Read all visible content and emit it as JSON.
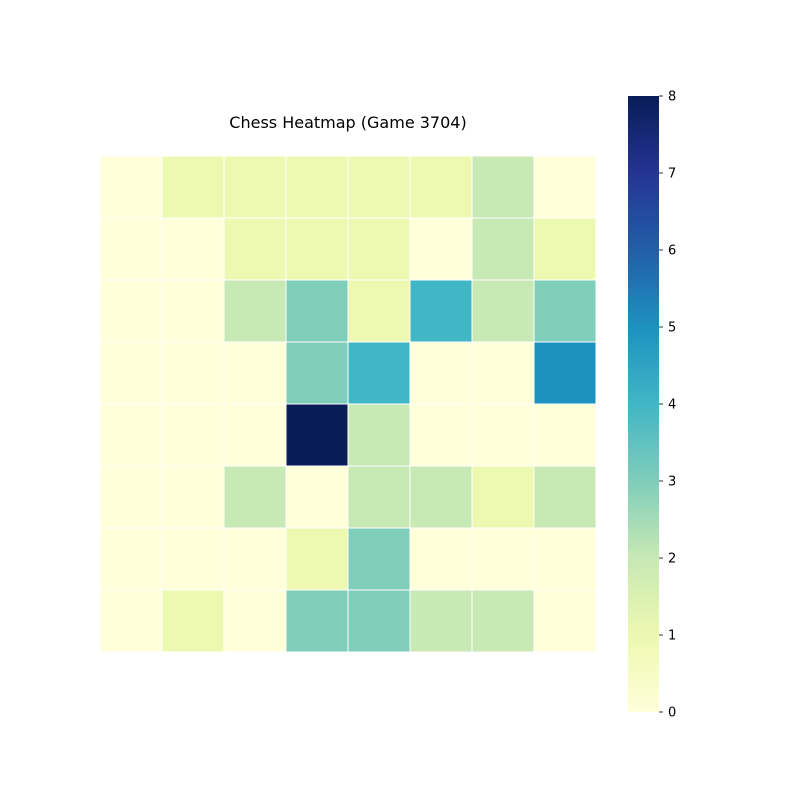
{
  "chart_data": {
    "type": "heatmap",
    "title": "Chess Heatmap (Game 3704)",
    "xlabel": "",
    "ylabel": "",
    "rows": 8,
    "cols": 8,
    "values": [
      [
        0,
        1,
        1,
        1,
        1,
        1,
        2,
        0
      ],
      [
        0,
        0,
        1,
        1,
        1,
        0,
        2,
        1
      ],
      [
        0,
        0,
        2,
        3,
        1,
        4,
        2,
        3
      ],
      [
        0,
        0,
        0,
        3,
        4,
        0,
        0,
        5
      ],
      [
        0,
        0,
        0,
        8,
        2,
        0,
        0,
        0
      ],
      [
        0,
        0,
        2,
        0,
        2,
        2,
        1,
        2
      ],
      [
        0,
        0,
        0,
        1,
        3,
        0,
        0,
        0
      ],
      [
        0,
        1,
        0,
        3,
        3,
        2,
        2,
        0
      ]
    ],
    "colorbar": {
      "min": 0,
      "max": 8,
      "ticks": [
        "0",
        "1",
        "2",
        "3",
        "4",
        "5",
        "6",
        "7",
        "8"
      ],
      "colormap": "YlGnBu",
      "colormap_stops": [
        "#ffffd9",
        "#edf8b1",
        "#c7e9b4",
        "#7fcdbb",
        "#41b6c4",
        "#1d91c0",
        "#225ea8",
        "#253494",
        "#081d58"
      ]
    },
    "grid_line_color": "#ffffff",
    "axes_visible": false
  }
}
